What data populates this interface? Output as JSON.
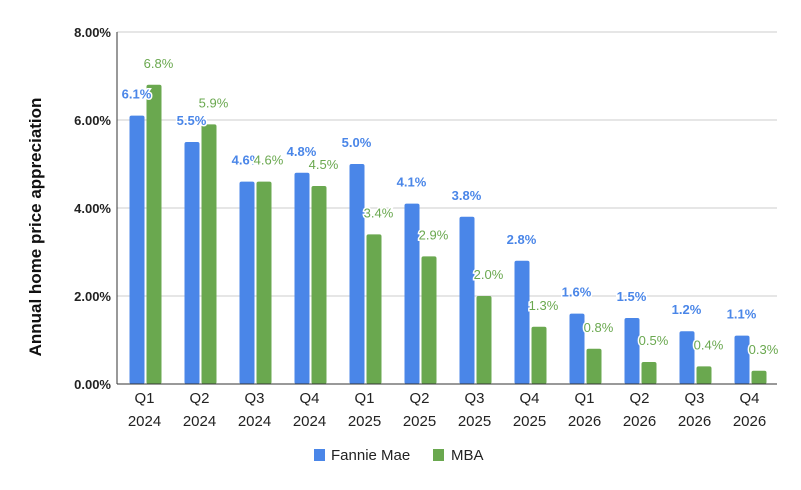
{
  "chart_data": {
    "type": "bar",
    "title": "",
    "xlabel": "",
    "ylabel": "Annual home price appreciation",
    "ylim": [
      0,
      8
    ],
    "yticks": [
      "0.00%",
      "2.00%",
      "4.00%",
      "6.00%",
      "8.00%"
    ],
    "ytick_values": [
      0,
      2,
      4,
      6,
      8
    ],
    "grid": true,
    "legend_position": "bottom",
    "categories": [
      [
        "Q1",
        "2024"
      ],
      [
        "Q2",
        "2024"
      ],
      [
        "Q3",
        "2024"
      ],
      [
        "Q4",
        "2024"
      ],
      [
        "Q1",
        "2025"
      ],
      [
        "Q2",
        "2025"
      ],
      [
        "Q3",
        "2025"
      ],
      [
        "Q4",
        "2025"
      ],
      [
        "Q1",
        "2026"
      ],
      [
        "Q2",
        "2026"
      ],
      [
        "Q3",
        "2026"
      ],
      [
        "Q4",
        "2026"
      ]
    ],
    "series": [
      {
        "name": "Fannie Mae",
        "color": "#4a86e8",
        "values": [
          6.1,
          5.5,
          4.6,
          4.8,
          5.0,
          4.1,
          3.8,
          2.8,
          1.6,
          1.5,
          1.2,
          1.1
        ],
        "labels": [
          "6.1%",
          "5.5%",
          "4.6%",
          "4.8%",
          "5.0%",
          "4.1%",
          "3.8%",
          "2.8%",
          "1.6%",
          "1.5%",
          "1.2%",
          "1.1%"
        ]
      },
      {
        "name": "MBA",
        "color": "#6aa84f",
        "values": [
          6.8,
          5.9,
          4.6,
          4.5,
          3.4,
          2.9,
          2.0,
          1.3,
          0.8,
          0.5,
          0.4,
          0.3
        ],
        "labels": [
          "6.8%",
          "5.9%",
          "4.6%",
          "4.5%",
          "3.4%",
          "2.9%",
          "2.0%",
          "1.3%",
          "0.8%",
          "0.5%",
          "0.4%",
          "0.3%"
        ]
      }
    ]
  }
}
